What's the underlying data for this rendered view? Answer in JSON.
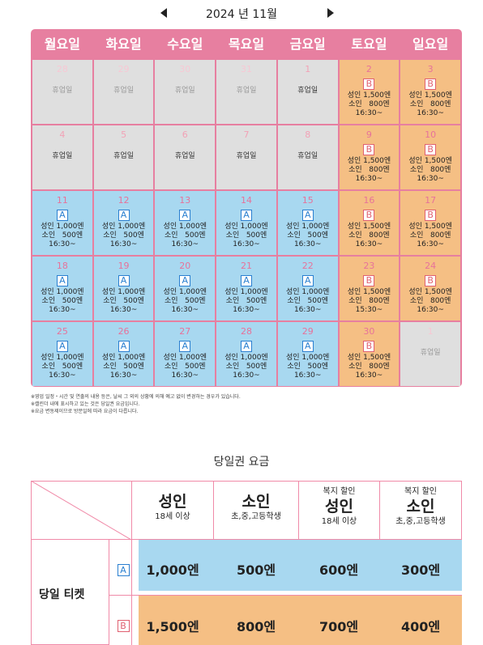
{
  "month_nav": {
    "title": "2024 년 11월"
  },
  "weekdays": [
    "월요일",
    "화요일",
    "수요일",
    "목요일",
    "금요일",
    "토요일",
    "일요일"
  ],
  "calendar": [
    {
      "day": "28",
      "type": "closed",
      "other": true,
      "text": "휴업일"
    },
    {
      "day": "29",
      "type": "closed",
      "other": true,
      "text": "휴업일"
    },
    {
      "day": "30",
      "type": "closed",
      "other": true,
      "text": "휴업일"
    },
    {
      "day": "31",
      "type": "closed",
      "other": true,
      "text": "휴업일"
    },
    {
      "day": "1",
      "type": "closed",
      "other": false,
      "text": "휴업일"
    },
    {
      "day": "2",
      "type": "B",
      "adult": "성인 1,500엔",
      "child": "소인   800엔",
      "time": "16:30~"
    },
    {
      "day": "3",
      "type": "B",
      "adult": "성인 1,500엔",
      "child": "소인   800엔",
      "time": "16:30~"
    },
    {
      "day": "4",
      "type": "closed",
      "other": false,
      "text": "휴업일"
    },
    {
      "day": "5",
      "type": "closed",
      "other": false,
      "text": "휴업일"
    },
    {
      "day": "6",
      "type": "closed",
      "other": false,
      "text": "휴업일"
    },
    {
      "day": "7",
      "type": "closed",
      "other": false,
      "text": "휴업일"
    },
    {
      "day": "8",
      "type": "closed",
      "other": false,
      "text": "휴업일"
    },
    {
      "day": "9",
      "type": "B",
      "adult": "성인 1,500엔",
      "child": "소인   800엔",
      "time": "16:30~"
    },
    {
      "day": "10",
      "type": "B",
      "adult": "성인 1,500엔",
      "child": "소인   800엔",
      "time": "16:30~"
    },
    {
      "day": "11",
      "type": "A",
      "adult": "성인 1,000엔",
      "child": "소인   500엔",
      "time": "16:30~"
    },
    {
      "day": "12",
      "type": "A",
      "adult": "성인 1,000엔",
      "child": "소인   500엔",
      "time": "16:30~"
    },
    {
      "day": "13",
      "type": "A",
      "adult": "성인 1,000엔",
      "child": "소인   500엔",
      "time": "16:30~"
    },
    {
      "day": "14",
      "type": "A",
      "adult": "성인 1,000엔",
      "child": "소인   500엔",
      "time": "16:30~"
    },
    {
      "day": "15",
      "type": "A",
      "adult": "성인 1,000엔",
      "child": "소인   500엔",
      "time": "16:30~"
    },
    {
      "day": "16",
      "type": "B",
      "adult": "성인 1,500엔",
      "child": "소인   800엔",
      "time": "16:30~"
    },
    {
      "day": "17",
      "type": "B",
      "adult": "성인 1,500엔",
      "child": "소인   800엔",
      "time": "16:30~"
    },
    {
      "day": "18",
      "type": "A",
      "adult": "성인 1,000엔",
      "child": "소인   500엔",
      "time": "16:30~"
    },
    {
      "day": "19",
      "type": "A",
      "adult": "성인 1,000엔",
      "child": "소인   500엔",
      "time": "16:30~"
    },
    {
      "day": "20",
      "type": "A",
      "adult": "성인 1,000엔",
      "child": "소인   500엔",
      "time": "16:30~"
    },
    {
      "day": "21",
      "type": "A",
      "adult": "성인 1,000엔",
      "child": "소인   500엔",
      "time": "16:30~"
    },
    {
      "day": "22",
      "type": "A",
      "adult": "성인 1,000엔",
      "child": "소인   500엔",
      "time": "16:30~"
    },
    {
      "day": "23",
      "type": "B",
      "adult": "성인 1,500엔",
      "child": "소인   800엔",
      "time": "15:30~"
    },
    {
      "day": "24",
      "type": "B",
      "adult": "성인 1,500엔",
      "child": "소인   800엔",
      "time": "16:30~"
    },
    {
      "day": "25",
      "type": "A",
      "adult": "성인 1,000엔",
      "child": "소인   500엔",
      "time": "16:30~"
    },
    {
      "day": "26",
      "type": "A",
      "adult": "성인 1,000엔",
      "child": "소인   500엔",
      "time": "16:30~"
    },
    {
      "day": "27",
      "type": "A",
      "adult": "성인 1,000엔",
      "child": "소인   500엔",
      "time": "16:30~"
    },
    {
      "day": "28",
      "type": "A",
      "adult": "성인 1,000엔",
      "child": "소인   500엔",
      "time": "16:30~"
    },
    {
      "day": "29",
      "type": "A",
      "adult": "성인 1,000엔",
      "child": "소인   500엔",
      "time": "16:30~"
    },
    {
      "day": "30",
      "type": "B",
      "adult": "성인 1,500엔",
      "child": "소인   800엔",
      "time": "16:30~"
    },
    {
      "day": "1",
      "type": "closed",
      "other": true,
      "text": "휴업일"
    }
  ],
  "notes": [
    "※영업 일정・시간 및 연출의 내용 등은, 날씨 그 외의 상황에 의해 예고 없이 변경하는 경우가 있습니다.",
    "※캘린더 내에 표시하고 있는 것은 당일권 요금입니다.",
    "※요금 변동제이므로 방문일에 따라 요금이 다릅니다."
  ],
  "fee_section": {
    "title": "당일권 요금",
    "headers": [
      {
        "pre": "",
        "label": "성인",
        "sub": "18세 이상"
      },
      {
        "pre": "",
        "label": "소인",
        "sub": "초,중,고등학생"
      },
      {
        "pre": "복지 할인",
        "label": "성인",
        "sub": "18세 이상"
      },
      {
        "pre": "복지 할인",
        "label": "소인",
        "sub": "초,중,고등학생"
      }
    ],
    "row_label": "당일 티켓",
    "rows": [
      {
        "badge": "A",
        "prices": [
          "1,000엔",
          "500엔",
          "600엔",
          "300엔"
        ]
      },
      {
        "badge": "B",
        "prices": [
          "1,500엔",
          "800엔",
          "700엔",
          "400엔"
        ]
      }
    ]
  }
}
